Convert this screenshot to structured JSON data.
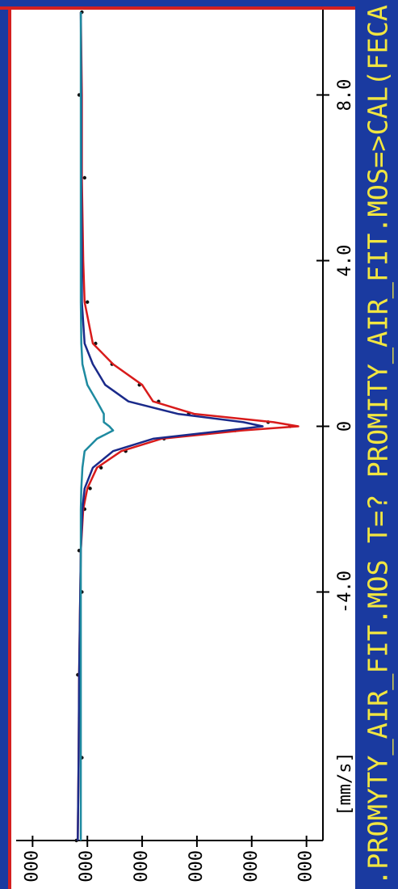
{
  "chart_data": {
    "type": "line",
    "x_label": "[mm/s]",
    "status_text": ".PROMYTY_AIR_FIT.MOS T=? PROMITY_AIR_FIT.MOS=>CAL(FECA",
    "xlim": [
      -10,
      10
    ],
    "xticks": [
      {
        "value": -4,
        "label": "-4.0"
      },
      0,
      {
        "value": 4,
        "label": "4.0"
      },
      {
        "value": 8,
        "label": "8.0"
      }
    ],
    "ylim": [
      89.4,
      100.6
    ],
    "yticks": [
      {
        "value": 100,
        "label": "000"
      },
      {
        "value": 98,
        "label": "000"
      },
      {
        "value": 96,
        "label": "000"
      },
      {
        "value": 94,
        "label": "000"
      },
      {
        "value": 92,
        "label": "000"
      },
      {
        "value": 90,
        "label": "000"
      }
    ],
    "x": [
      -10,
      -8,
      -6,
      -4,
      -3,
      -2,
      -1.5,
      -1,
      -0.6,
      -0.3,
      -0.1,
      0,
      0.1,
      0.3,
      0.6,
      1,
      1.5,
      2,
      3,
      4,
      6,
      8,
      10
    ],
    "series": [
      {
        "name": "data",
        "color": "#111111",
        "marker": true,
        "values": [
          98.4,
          98.2,
          98.35,
          98.2,
          98.3,
          98.1,
          97.9,
          97.5,
          96.6,
          95.2,
          92.6,
          90.6,
          91.4,
          94.3,
          95.4,
          96.1,
          97.1,
          97.7,
          98.0,
          98.2,
          98.1,
          98.3,
          98.2
        ]
      },
      {
        "name": "fit",
        "color": "#d81b1b",
        "values": [
          98.35,
          98.32,
          98.3,
          98.26,
          98.24,
          98.15,
          98.0,
          97.65,
          96.76,
          95.3,
          92.35,
          90.3,
          91.2,
          94.1,
          95.6,
          96.0,
          97.06,
          97.8,
          98.1,
          98.15,
          98.2,
          98.2,
          98.24
        ]
      },
      {
        "name": "singlet",
        "color": "#1a2a8a",
        "values": [
          98.35,
          98.32,
          98.3,
          98.26,
          98.24,
          98.18,
          98.1,
          97.8,
          97.06,
          95.6,
          92.9,
          91.6,
          92.3,
          94.7,
          96.5,
          97.35,
          97.8,
          98.1,
          98.2,
          98.2,
          98.22,
          98.22,
          98.24
        ]
      },
      {
        "name": "doublet",
        "color": "#1e8aa0",
        "values": [
          98.24,
          98.24,
          98.24,
          98.24,
          98.24,
          98.24,
          98.22,
          98.18,
          98.1,
          97.65,
          97.06,
          97.2,
          97.4,
          97.4,
          97.65,
          98.0,
          98.18,
          98.22,
          98.24,
          98.24,
          98.24,
          98.24,
          98.24
        ]
      }
    ]
  }
}
